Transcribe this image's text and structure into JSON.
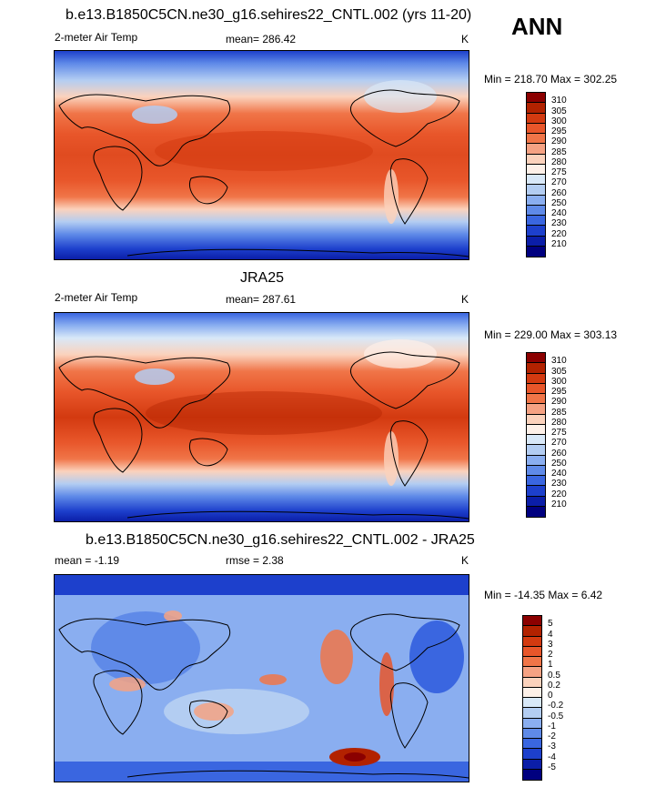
{
  "season": "ANN",
  "panels": [
    {
      "title": "b.e13.B1850C5CN.ne30_g16.sehires22_CNTL.002 (yrs 11-20)",
      "left_label": "2-meter Air Temp",
      "center_label": "mean= 286.42",
      "units": "K",
      "minmax": "Min = 218.70 Max = 302.25",
      "colorbar": {
        "labels": [
          "310",
          "305",
          "300",
          "295",
          "290",
          "285",
          "280",
          "275",
          "270",
          "260",
          "250",
          "240",
          "230",
          "220",
          "210"
        ],
        "colors": [
          "#8b0000",
          "#b22200",
          "#d33a10",
          "#e8562a",
          "#f07548",
          "#f5a283",
          "#fbd2bc",
          "#fdf0e8",
          "#d8e8f8",
          "#b3cdf2",
          "#8aaef0",
          "#5f8ae8",
          "#3a66e0",
          "#1d40cc",
          "#0b1ea8",
          "#00007f"
        ]
      }
    },
    {
      "title": "JRA25",
      "left_label": "2-meter Air Temp",
      "center_label": "mean= 287.61",
      "units": "K",
      "minmax": "Min = 229.00 Max = 303.13",
      "colorbar": {
        "labels": [
          "310",
          "305",
          "300",
          "295",
          "290",
          "285",
          "280",
          "275",
          "270",
          "260",
          "250",
          "240",
          "230",
          "220",
          "210"
        ],
        "colors": [
          "#8b0000",
          "#b22200",
          "#d33a10",
          "#e8562a",
          "#f07548",
          "#f5a283",
          "#fbd2bc",
          "#fdf0e8",
          "#d8e8f8",
          "#b3cdf2",
          "#8aaef0",
          "#5f8ae8",
          "#3a66e0",
          "#1d40cc",
          "#0b1ea8",
          "#00007f"
        ]
      }
    },
    {
      "title": "b.e13.B1850C5CN.ne30_g16.sehires22_CNTL.002 - JRA25",
      "left_label": "mean =  -1.19",
      "center_label": "rmse =   2.38",
      "units": "K",
      "minmax": "Min = -14.35 Max =   6.42",
      "colorbar": {
        "labels": [
          "5",
          "4",
          "3",
          "2",
          "1",
          "0.5",
          "0.2",
          "0",
          "-0.2",
          "-0.5",
          "-1",
          "-2",
          "-3",
          "-4",
          "-5"
        ],
        "colors": [
          "#8b0000",
          "#b22200",
          "#d33a10",
          "#e8562a",
          "#f07548",
          "#f5a283",
          "#fbd2bc",
          "#fdf0e8",
          "#d8e8f8",
          "#b3cdf2",
          "#8aaef0",
          "#5f8ae8",
          "#3a66e0",
          "#1d40cc",
          "#0b1ea8",
          "#00007f"
        ]
      }
    }
  ]
}
